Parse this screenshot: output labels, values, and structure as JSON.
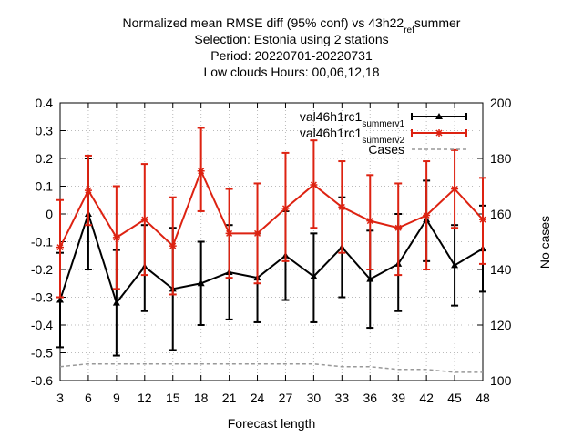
{
  "chart_data": {
    "type": "line",
    "title_lines": [
      "Normalized mean RMSE diff (95% conf) vs 43h22_ref_summer",
      "Selection: Estonia using      2 stations",
      "Period: 20220701-20220731",
      "Low clouds   Hours: 00,06,12,18"
    ],
    "xlabel": "Forecast length",
    "ylabel_right": "No cases",
    "x": [
      3,
      6,
      9,
      12,
      15,
      18,
      21,
      24,
      27,
      30,
      33,
      36,
      39,
      42,
      45,
      48
    ],
    "xlim": [
      3,
      48
    ],
    "ylim": [
      -0.6,
      0.4
    ],
    "y2lim": [
      100,
      200
    ],
    "yticks": [
      "-0.6",
      "-0.5",
      "-0.4",
      "-0.3",
      "-0.2",
      "-0.1",
      "0",
      "0.1",
      "0.2",
      "0.3",
      "0.4"
    ],
    "y2ticks": [
      "100",
      "120",
      "140",
      "160",
      "180",
      "200"
    ],
    "legend_position": "top-right",
    "grid": true,
    "series": [
      {
        "name": "val46h1rc1_summer_v1",
        "color": "#000000",
        "marker": "triangle",
        "axis": "left",
        "values": [
          -0.31,
          0.0,
          -0.32,
          -0.19,
          -0.27,
          -0.25,
          -0.21,
          -0.23,
          -0.15,
          -0.225,
          -0.12,
          -0.235,
          -0.18,
          -0.02,
          -0.185,
          -0.125
        ],
        "err_low": [
          -0.48,
          -0.2,
          -0.51,
          -0.35,
          -0.49,
          -0.4,
          -0.38,
          -0.39,
          -0.31,
          -0.39,
          -0.3,
          -0.41,
          -0.35,
          -0.17,
          -0.33,
          -0.28
        ],
        "err_high": [
          -0.14,
          0.2,
          -0.13,
          -0.04,
          -0.05,
          -0.1,
          -0.04,
          -0.07,
          0.01,
          -0.07,
          0.06,
          -0.06,
          0.0,
          0.12,
          -0.04,
          0.03
        ]
      },
      {
        "name": "val46h1rc1_summer_v2",
        "color": "#dd2211",
        "marker": "star",
        "axis": "left",
        "values": [
          -0.12,
          0.085,
          -0.085,
          -0.02,
          -0.115,
          0.155,
          -0.07,
          -0.07,
          0.02,
          0.105,
          0.025,
          -0.025,
          -0.05,
          -0.005,
          0.09,
          -0.02
        ],
        "err_low": [
          -0.3,
          -0.04,
          -0.27,
          -0.22,
          -0.29,
          0.01,
          -0.23,
          -0.25,
          -0.17,
          -0.05,
          -0.14,
          -0.2,
          -0.22,
          -0.2,
          -0.05,
          -0.18
        ],
        "err_high": [
          0.05,
          0.21,
          0.1,
          0.18,
          0.06,
          0.31,
          0.09,
          0.11,
          0.22,
          0.265,
          0.19,
          0.14,
          0.11,
          0.19,
          0.23,
          0.13
        ]
      },
      {
        "name": "Cases",
        "color": "#999999",
        "marker": "none",
        "axis": "right",
        "dashed": true,
        "values": [
          105,
          106,
          106,
          106,
          106,
          106,
          106,
          106,
          106,
          106,
          105,
          105,
          104,
          104,
          103,
          103
        ]
      }
    ]
  }
}
